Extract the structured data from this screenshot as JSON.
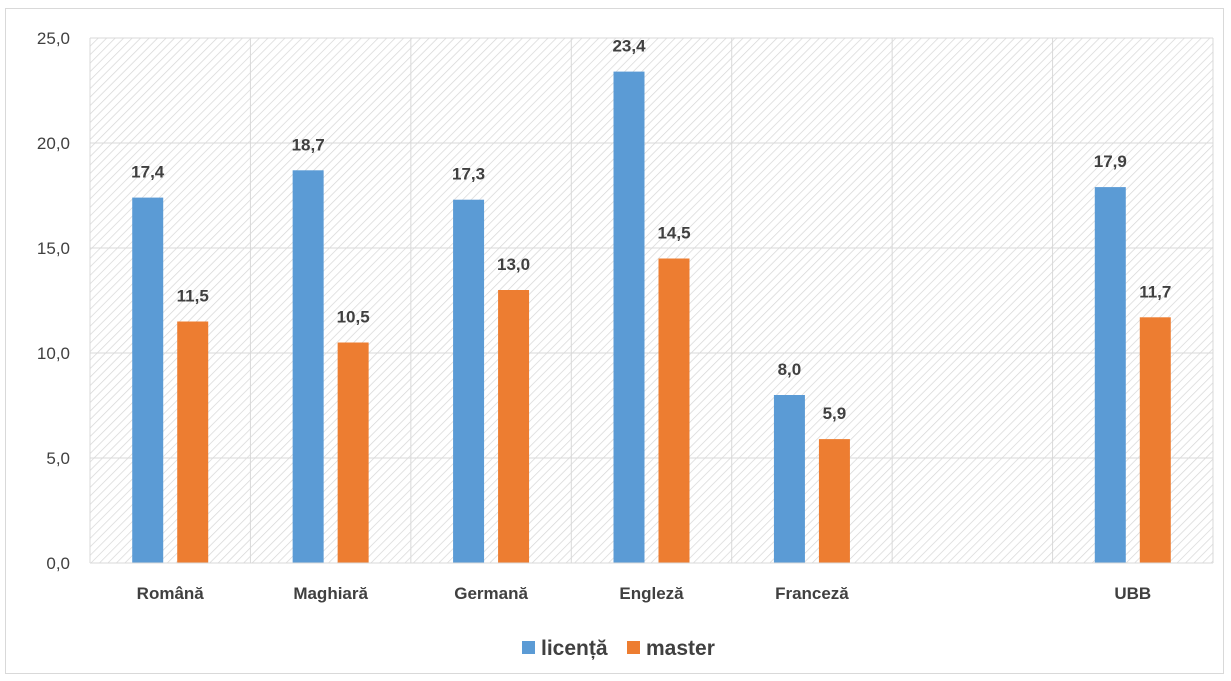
{
  "chart_data": {
    "type": "bar",
    "title": "",
    "xlabel": "",
    "ylabel": "",
    "categories": [
      "Română",
      "Maghiară",
      "Germană",
      "Engleză",
      "Franceză",
      "",
      "UBB"
    ],
    "series": [
      {
        "name": "licență",
        "color": "#5b9bd5",
        "values": [
          17.4,
          18.7,
          17.3,
          23.4,
          8.0,
          null,
          17.9
        ],
        "labels": [
          "17,4",
          "18,7",
          "17,3",
          "23,4",
          "8,0",
          "",
          "17,9"
        ]
      },
      {
        "name": "master",
        "color": "#ed7d31",
        "values": [
          11.5,
          10.5,
          13.0,
          14.5,
          5.9,
          null,
          11.7
        ],
        "labels": [
          "11,5",
          "10,5",
          "13,0",
          "14,5",
          "5,9",
          "",
          "11,7"
        ]
      }
    ],
    "ylim": [
      0,
      25
    ],
    "yticks": [
      0,
      5,
      10,
      15,
      20,
      25
    ],
    "ytick_labels": [
      "0,0",
      "5,0",
      "10,0",
      "15,0",
      "20,0",
      "25,0"
    ],
    "grid": true,
    "plot_background": "hatched",
    "legend_position": "bottom"
  }
}
